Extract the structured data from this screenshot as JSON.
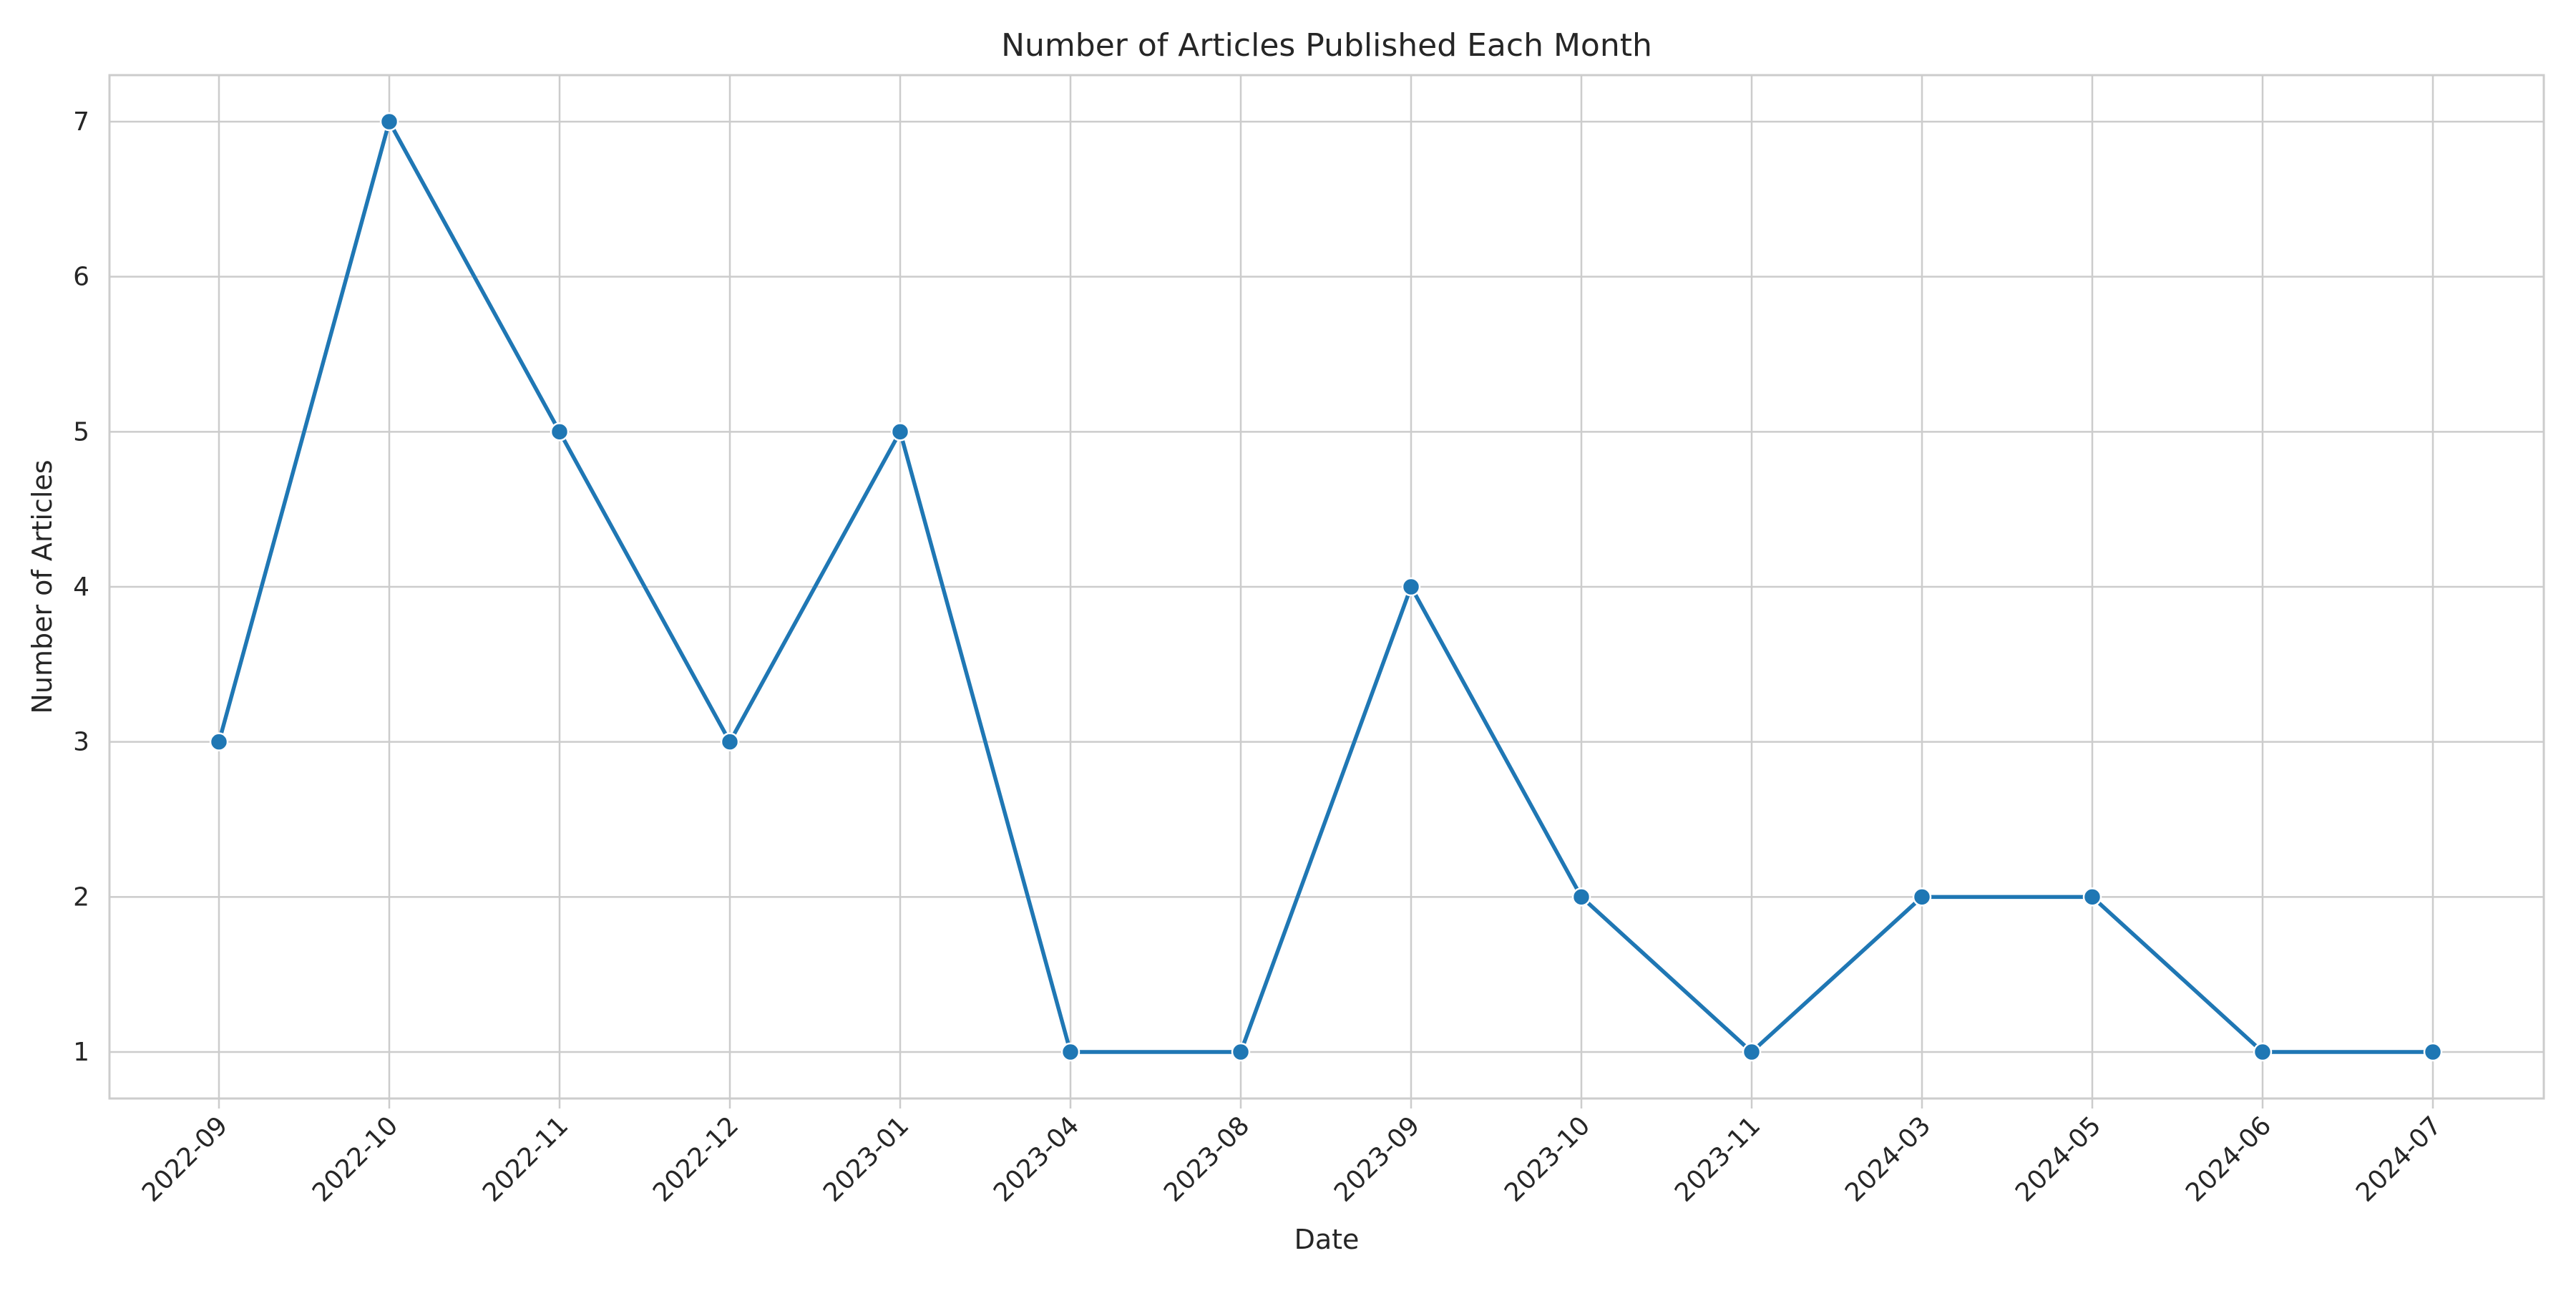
{
  "chart_data": {
    "type": "line",
    "title": "Number of Articles Published Each Month",
    "xlabel": "Date",
    "ylabel": "Number of Articles",
    "categories": [
      "2022-09",
      "2022-10",
      "2022-11",
      "2022-12",
      "2023-01",
      "2023-04",
      "2023-08",
      "2023-09",
      "2023-10",
      "2023-11",
      "2024-03",
      "2024-05",
      "2024-06",
      "2024-07"
    ],
    "series": [
      {
        "values": [
          3,
          7,
          5,
          3,
          5,
          1,
          1,
          4,
          2,
          1,
          2,
          2,
          1,
          1
        ],
        "color": "#1f77b4"
      }
    ],
    "yticks": [
      1,
      2,
      3,
      4,
      5,
      6,
      7
    ],
    "ylim": [
      0.7,
      7.3
    ],
    "grid": true,
    "marker": "circle",
    "xtick_rotation": 45
  }
}
